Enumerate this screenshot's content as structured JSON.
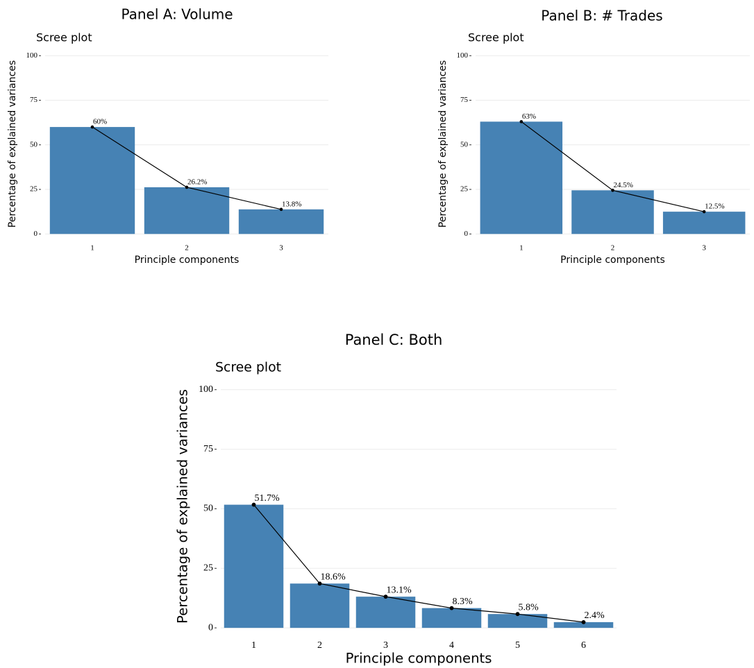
{
  "chart_data": [
    {
      "type": "bar",
      "title": "Panel A: Volume",
      "subtitle": "Scree plot",
      "xlabel": "Principle components",
      "ylabel": "Percentage of explained variances",
      "categories": [
        "1",
        "2",
        "3"
      ],
      "values": [
        60,
        26.2,
        13.8
      ],
      "value_labels": [
        "60%",
        "26.2%",
        "13.8%"
      ],
      "color": "#4682b4",
      "line_color": "#000000",
      "ylim": [
        -3,
        104
      ],
      "yticks": [
        0,
        25,
        50,
        75,
        100
      ],
      "grid": true
    },
    {
      "type": "bar",
      "title": "Panel B: # Trades",
      "subtitle": "Scree plot",
      "xlabel": "Principle components",
      "ylabel": "Percentage of explained variances",
      "categories": [
        "1",
        "2",
        "3"
      ],
      "values": [
        63,
        24.5,
        12.5
      ],
      "value_labels": [
        "63%",
        "24.5%",
        "12.5%"
      ],
      "color": "#4682b4",
      "line_color": "#000000",
      "ylim": [
        -3,
        104
      ],
      "yticks": [
        0,
        25,
        50,
        75,
        100
      ],
      "grid": true
    },
    {
      "type": "bar",
      "title": "Panel C: Both",
      "subtitle": "Scree plot",
      "xlabel": "Principle components",
      "ylabel": "Percentage of explained variances",
      "categories": [
        "1",
        "2",
        "3",
        "4",
        "5",
        "6"
      ],
      "values": [
        51.7,
        18.6,
        13.1,
        8.3,
        5.8,
        2.4
      ],
      "value_labels": [
        "51.7%",
        "18.6%",
        "13.1%",
        "8.3%",
        "5.8%",
        "2.4%"
      ],
      "color": "#4682b4",
      "line_color": "#000000",
      "ylim": [
        -2,
        104
      ],
      "yticks": [
        0,
        25,
        50,
        75,
        100
      ],
      "grid": true
    }
  ]
}
